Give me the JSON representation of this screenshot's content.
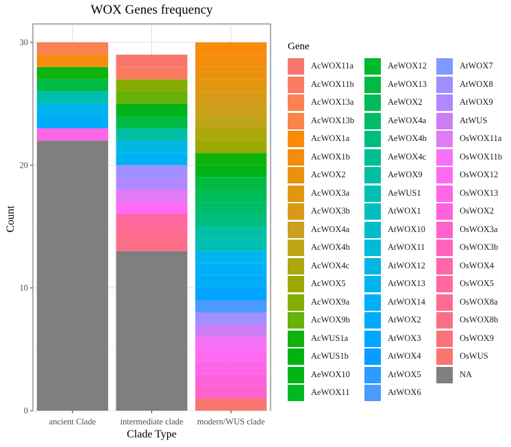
{
  "chart_data": {
    "type": "bar",
    "stacked": true,
    "title": "WOX Genes frequency",
    "xlabel": "Clade Type",
    "ylabel": "Count",
    "ylim": [
      0,
      31.5
    ],
    "yticks": [
      0,
      10,
      20,
      30
    ],
    "categories": [
      "ancient Clade",
      "intermediate clade",
      "modern/WUS clade"
    ],
    "legend_title": "Gene",
    "legend_position": "right",
    "genes": [
      {
        "name": "AcWOX11a",
        "color": "#F8766D",
        "values": [
          0,
          1,
          0
        ]
      },
      {
        "name": "AcWOX11b",
        "color": "#FA7B61",
        "values": [
          0,
          1,
          0
        ]
      },
      {
        "name": "AcWOX13a",
        "color": "#FB8052",
        "values": [
          1,
          0,
          0
        ]
      },
      {
        "name": "AcWOX13b",
        "color": "#FC8446",
        "values": [
          0,
          0,
          0
        ]
      },
      {
        "name": "AcWOX1a",
        "color": "#F98A0A",
        "values": [
          0,
          0,
          1
        ]
      },
      {
        "name": "AcWOX1b",
        "color": "#F48D0F",
        "values": [
          1,
          0,
          1
        ]
      },
      {
        "name": "AcWOX2",
        "color": "#EB920D",
        "values": [
          0,
          0,
          1
        ]
      },
      {
        "name": "AcWOX3a",
        "color": "#E19610",
        "values": [
          0,
          0,
          1
        ]
      },
      {
        "name": "AcWOX3b",
        "color": "#D89A16",
        "values": [
          0,
          0,
          1
        ]
      },
      {
        "name": "AcWOX4a",
        "color": "#CC9F1C",
        "values": [
          0,
          0,
          1
        ]
      },
      {
        "name": "AcWOX4b",
        "color": "#BEA417",
        "values": [
          0,
          0,
          1
        ]
      },
      {
        "name": "AcWOX4c",
        "color": "#ACA70D",
        "values": [
          0,
          0,
          1
        ]
      },
      {
        "name": "AcWOX5",
        "color": "#9AA800",
        "values": [
          0,
          0,
          1
        ]
      },
      {
        "name": "AcWOX9a",
        "color": "#85AD00",
        "values": [
          0,
          1,
          0
        ]
      },
      {
        "name": "AcWOX9b",
        "color": "#66B10A",
        "values": [
          0,
          1,
          0
        ]
      },
      {
        "name": "AcWUS1a",
        "color": "#10B20E",
        "values": [
          1,
          0,
          1
        ]
      },
      {
        "name": "AcWUS1b",
        "color": "#00B30E",
        "values": [
          0,
          0,
          0
        ]
      },
      {
        "name": "AeWOX10",
        "color": "#00B418",
        "values": [
          0,
          1,
          1
        ]
      },
      {
        "name": "AeWOX11",
        "color": "#00B822",
        "values": [
          0,
          0,
          0
        ]
      },
      {
        "name": "AeWOX12",
        "color": "#00B92C",
        "values": [
          0,
          0,
          0
        ]
      },
      {
        "name": "AeWOX13",
        "color": "#00BA44",
        "values": [
          1,
          1,
          1
        ]
      },
      {
        "name": "AeWOX2",
        "color": "#00BB57",
        "values": [
          0,
          0,
          1
        ]
      },
      {
        "name": "AeWOX4a",
        "color": "#00BC69",
        "values": [
          0,
          0,
          1
        ]
      },
      {
        "name": "AeWOX4b",
        "color": "#00BD7E",
        "values": [
          0,
          0,
          1
        ]
      },
      {
        "name": "AeWOX4c",
        "color": "#00BE92",
        "values": [
          0,
          0,
          0
        ]
      },
      {
        "name": "AeWOX9",
        "color": "#00BFA4",
        "values": [
          0,
          1,
          1
        ]
      },
      {
        "name": "AeWUS1",
        "color": "#00BFB1",
        "values": [
          1,
          0,
          1
        ]
      },
      {
        "name": "AtWOX1",
        "color": "#00BFBE",
        "values": [
          0,
          0,
          0
        ]
      },
      {
        "name": "AtWOX10",
        "color": "#00BDC9",
        "values": [
          0,
          0,
          0
        ]
      },
      {
        "name": "AtWOX11",
        "color": "#00BBD6",
        "values": [
          0,
          0,
          0
        ]
      },
      {
        "name": "AtWOX12",
        "color": "#00B8E2",
        "values": [
          0,
          1,
          0
        ]
      },
      {
        "name": "AtWOX13",
        "color": "#00B4EF",
        "values": [
          1,
          0,
          1
        ]
      },
      {
        "name": "AtWOX14",
        "color": "#00B0F6",
        "values": [
          0,
          1,
          1
        ]
      },
      {
        "name": "AtWOX2",
        "color": "#00ABFA",
        "values": [
          1,
          0,
          1
        ]
      },
      {
        "name": "AtWOX3",
        "color": "#00A5FF",
        "values": [
          0,
          0,
          1
        ]
      },
      {
        "name": "AtWOX4",
        "color": "#079EFF",
        "values": [
          0,
          0,
          0
        ]
      },
      {
        "name": "AtWOX5",
        "color": "#2E9BFF",
        "values": [
          0,
          0,
          0
        ]
      },
      {
        "name": "AtWOX6",
        "color": "#4B9BFF",
        "values": [
          0,
          0,
          1
        ]
      },
      {
        "name": "AtWOX7",
        "color": "#7D9BFF",
        "values": [
          0,
          0,
          0
        ]
      },
      {
        "name": "AtWOX8",
        "color": "#A08FFF",
        "values": [
          0,
          1,
          1
        ]
      },
      {
        "name": "AtWOX9",
        "color": "#B088FF",
        "values": [
          0,
          1,
          0
        ]
      },
      {
        "name": "AtWUS",
        "color": "#CB7EF4",
        "values": [
          0,
          0,
          1
        ]
      },
      {
        "name": "OsWOX11a",
        "color": "#E07AF5",
        "values": [
          0,
          1,
          0
        ]
      },
      {
        "name": "OsWOX11b",
        "color": "#F770F8",
        "values": [
          0,
          0,
          1
        ]
      },
      {
        "name": "OsWOX12",
        "color": "#FE6BF2",
        "values": [
          0,
          1,
          1
        ]
      },
      {
        "name": "OsWOX13",
        "color": "#FF65E7",
        "values": [
          1,
          0,
          1
        ]
      },
      {
        "name": "OsWOX2",
        "color": "#FF61DB",
        "values": [
          0,
          0,
          1
        ]
      },
      {
        "name": "OsWOX3a",
        "color": "#FF61CD",
        "values": [
          0,
          0,
          1
        ]
      },
      {
        "name": "OsWOX3b",
        "color": "#FF62BC",
        "values": [
          0,
          0,
          0
        ]
      },
      {
        "name": "OsWOX4",
        "color": "#FF64AC",
        "values": [
          0,
          0,
          0
        ]
      },
      {
        "name": "OsWOX5",
        "color": "#FF679D",
        "values": [
          0,
          1,
          0
        ]
      },
      {
        "name": "OsWOX8a",
        "color": "#FD6C90",
        "values": [
          0,
          1,
          0
        ]
      },
      {
        "name": "OsWOX8b",
        "color": "#FA6F85",
        "values": [
          0,
          1,
          0
        ]
      },
      {
        "name": "OsWOX9",
        "color": "#F8727A",
        "values": [
          0,
          0,
          0
        ]
      },
      {
        "name": "OsWUS",
        "color": "#F8766D",
        "values": [
          0,
          0,
          1
        ]
      },
      {
        "name": "NA",
        "color": "#7F7F7F",
        "values": [
          22,
          13,
          0
        ]
      }
    ]
  }
}
